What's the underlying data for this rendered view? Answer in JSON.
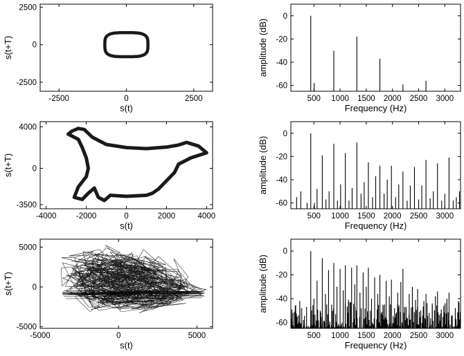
{
  "chart_data": [
    {
      "id": "p1",
      "type": "line",
      "subtype": "phase-portrait",
      "xlabel": "s(t)",
      "ylabel": "s(t+T)",
      "xlim": [
        -3200,
        3200
      ],
      "ylim": [
        -3100,
        2700
      ],
      "xticks": [
        -2500,
        0,
        2500
      ],
      "yticks": [
        -2500,
        0,
        2500
      ],
      "shape": "rounded-square",
      "cx": 0,
      "cy": 0,
      "rx": 800,
      "ry": 800,
      "line_weight": "thick"
    },
    {
      "id": "p2",
      "type": "bar",
      "subtype": "spectrum",
      "xlabel": "Frequency (Hz)",
      "ylabel": "amplitude (dB)",
      "xlim": [
        60,
        3300
      ],
      "ylim": [
        -65,
        10
      ],
      "xticks": [
        500,
        1000,
        1500,
        2000,
        2500,
        3000
      ],
      "yticks": [
        0,
        -20,
        -40,
        -60
      ],
      "baseline": -65,
      "peaks": [
        {
          "x": 440,
          "y": 0
        },
        {
          "x": 505,
          "y": -58
        },
        {
          "x": 880,
          "y": -30
        },
        {
          "x": 1320,
          "y": -18
        },
        {
          "x": 1760,
          "y": -37
        },
        {
          "x": 2200,
          "y": -59
        },
        {
          "x": 2640,
          "y": -56
        }
      ]
    },
    {
      "id": "p3",
      "type": "line",
      "subtype": "phase-portrait",
      "xlabel": "s(t)",
      "ylabel": "s(t+T)",
      "xlim": [
        -4300,
        4300
      ],
      "ylim": [
        -3900,
        4500
      ],
      "xticks": [
        -4000,
        -2000,
        0,
        2000,
        4000
      ],
      "yticks": [
        4000,
        0,
        -3500
      ],
      "line_weight": "thick",
      "outline": [
        [
          -2700,
          3600
        ],
        [
          -2400,
          3850
        ],
        [
          -2100,
          3750
        ],
        [
          -1700,
          3000
        ],
        [
          -1000,
          2300
        ],
        [
          0,
          2000
        ],
        [
          1000,
          1900
        ],
        [
          2000,
          2050
        ],
        [
          2600,
          2250
        ],
        [
          3000,
          2500
        ],
        [
          3600,
          2150
        ],
        [
          4000,
          1500
        ],
        [
          3200,
          1000
        ],
        [
          2600,
          400
        ],
        [
          2400,
          -400
        ],
        [
          2000,
          -1200
        ],
        [
          1600,
          -2000
        ],
        [
          1300,
          -2400
        ],
        [
          1000,
          -2600
        ],
        [
          0,
          -2700
        ],
        [
          -800,
          -2600
        ],
        [
          -1100,
          -3100
        ],
        [
          -1400,
          -2800
        ],
        [
          -1600,
          -1900
        ],
        [
          -1900,
          -2400
        ],
        [
          -2200,
          -3000
        ],
        [
          -2600,
          -2800
        ],
        [
          -2400,
          -1800
        ],
        [
          -2000,
          -800
        ],
        [
          -1900,
          0
        ],
        [
          -2000,
          1000
        ],
        [
          -2200,
          2000
        ],
        [
          -2400,
          2800
        ],
        [
          -2900,
          3300
        ],
        [
          -2700,
          3600
        ]
      ]
    },
    {
      "id": "p4",
      "type": "bar",
      "subtype": "spectrum",
      "xlabel": "Frequency (Hz)",
      "ylabel": "amplitude (dB)",
      "xlim": [
        60,
        3300
      ],
      "ylim": [
        -65,
        10
      ],
      "xticks": [
        500,
        1000,
        1500,
        2000,
        2500,
        3000
      ],
      "yticks": [
        0,
        -20,
        -40,
        -60
      ],
      "baseline": -65,
      "peaks": [
        {
          "x": 170,
          "y": -55
        },
        {
          "x": 250,
          "y": -50
        },
        {
          "x": 370,
          "y": -60
        },
        {
          "x": 440,
          "y": 0
        },
        {
          "x": 510,
          "y": -60
        },
        {
          "x": 560,
          "y": -48
        },
        {
          "x": 660,
          "y": -19
        },
        {
          "x": 730,
          "y": -57
        },
        {
          "x": 790,
          "y": -50
        },
        {
          "x": 880,
          "y": -9
        },
        {
          "x": 950,
          "y": -58
        },
        {
          "x": 1010,
          "y": -44
        },
        {
          "x": 1100,
          "y": -17
        },
        {
          "x": 1170,
          "y": -58
        },
        {
          "x": 1230,
          "y": -47
        },
        {
          "x": 1320,
          "y": -8
        },
        {
          "x": 1400,
          "y": -52
        },
        {
          "x": 1460,
          "y": -42
        },
        {
          "x": 1540,
          "y": -25
        },
        {
          "x": 1620,
          "y": -55
        },
        {
          "x": 1680,
          "y": -37
        },
        {
          "x": 1760,
          "y": -28
        },
        {
          "x": 1840,
          "y": -52
        },
        {
          "x": 1900,
          "y": -40
        },
        {
          "x": 1980,
          "y": -28
        },
        {
          "x": 2060,
          "y": -55
        },
        {
          "x": 2120,
          "y": -44
        },
        {
          "x": 2200,
          "y": -33
        },
        {
          "x": 2280,
          "y": -58
        },
        {
          "x": 2340,
          "y": -45
        },
        {
          "x": 2420,
          "y": -29
        },
        {
          "x": 2500,
          "y": -57
        },
        {
          "x": 2560,
          "y": -45
        },
        {
          "x": 2640,
          "y": -23
        },
        {
          "x": 2720,
          "y": -56
        },
        {
          "x": 2780,
          "y": -50
        },
        {
          "x": 2860,
          "y": -26
        },
        {
          "x": 2940,
          "y": -58
        },
        {
          "x": 3000,
          "y": -52
        },
        {
          "x": 3080,
          "y": -21
        },
        {
          "x": 3160,
          "y": -58
        },
        {
          "x": 3220,
          "y": -55
        },
        {
          "x": 3280,
          "y": -50
        }
      ]
    },
    {
      "id": "p5",
      "type": "line",
      "subtype": "phase-portrait",
      "xlabel": "s(t)",
      "ylabel": "s(t+T)",
      "xlim": [
        -5000,
        6000
      ],
      "ylim": [
        -5200,
        6000
      ],
      "xticks": [
        -5000,
        0,
        5000
      ],
      "yticks": [
        5000,
        0,
        -5000
      ],
      "line_weight": "thin",
      "pattern": "chaotic",
      "anchors": [
        [
          -3500,
          4200
        ],
        [
          -1500,
          5100
        ],
        [
          500,
          5200
        ],
        [
          2500,
          4200
        ],
        [
          4500,
          1500
        ],
        [
          5400,
          -600
        ],
        [
          4500,
          -1700
        ],
        [
          2500,
          -2600
        ],
        [
          500,
          -3300
        ],
        [
          -1500,
          -2800
        ],
        [
          -3300,
          -800
        ],
        [
          -3600,
          1500
        ],
        [
          -2500,
          3500
        ],
        [
          -800,
          4500
        ],
        [
          1500,
          3800
        ],
        [
          3500,
          1800
        ],
        [
          5000,
          -1100
        ],
        [
          3000,
          -2300
        ],
        [
          0,
          -1300
        ],
        [
          -2800,
          -1000
        ],
        [
          -3700,
          -300
        ],
        [
          -2000,
          2000
        ],
        [
          0,
          3000
        ],
        [
          2000,
          2500
        ],
        [
          3800,
          500
        ],
        [
          5200,
          -1000
        ],
        [
          2000,
          -3200
        ],
        [
          -1000,
          -4000
        ],
        [
          -2500,
          -2200
        ],
        [
          -3200,
          2800
        ]
      ]
    },
    {
      "id": "p6",
      "type": "bar",
      "subtype": "spectrum",
      "xlabel": "Frequency (Hz)",
      "ylabel": "amplitude (dB)",
      "xlim": [
        60,
        3300
      ],
      "ylim": [
        -65,
        10
      ],
      "xticks": [
        500,
        1000,
        1500,
        2000,
        2500,
        3000
      ],
      "yticks": [
        0,
        -20,
        -40,
        -60
      ],
      "baseline": -65,
      "pattern": "dense-noisy",
      "peaks": [
        {
          "x": 100,
          "y": -52
        },
        {
          "x": 170,
          "y": -60
        },
        {
          "x": 230,
          "y": -42
        },
        {
          "x": 300,
          "y": -58
        },
        {
          "x": 360,
          "y": -47
        },
        {
          "x": 440,
          "y": 0
        },
        {
          "x": 500,
          "y": -40
        },
        {
          "x": 560,
          "y": -25
        },
        {
          "x": 620,
          "y": -50
        },
        {
          "x": 660,
          "y": -6
        },
        {
          "x": 720,
          "y": -36
        },
        {
          "x": 780,
          "y": -16
        },
        {
          "x": 840,
          "y": -45
        },
        {
          "x": 880,
          "y": -10
        },
        {
          "x": 940,
          "y": -30
        },
        {
          "x": 1000,
          "y": -15
        },
        {
          "x": 1060,
          "y": -33
        },
        {
          "x": 1100,
          "y": -12
        },
        {
          "x": 1160,
          "y": -41
        },
        {
          "x": 1220,
          "y": -14
        },
        {
          "x": 1280,
          "y": -28
        },
        {
          "x": 1320,
          "y": -12
        },
        {
          "x": 1380,
          "y": -35
        },
        {
          "x": 1440,
          "y": -18
        },
        {
          "x": 1500,
          "y": -30
        },
        {
          "x": 1540,
          "y": -14
        },
        {
          "x": 1600,
          "y": -40
        },
        {
          "x": 1660,
          "y": -22
        },
        {
          "x": 1720,
          "y": -36
        },
        {
          "x": 1760,
          "y": -20
        },
        {
          "x": 1820,
          "y": -45
        },
        {
          "x": 1880,
          "y": -25
        },
        {
          "x": 1940,
          "y": -38
        },
        {
          "x": 1980,
          "y": -24
        },
        {
          "x": 2040,
          "y": -48
        },
        {
          "x": 2100,
          "y": -35
        },
        {
          "x": 2160,
          "y": -26
        },
        {
          "x": 2200,
          "y": -15
        },
        {
          "x": 2260,
          "y": -47
        },
        {
          "x": 2320,
          "y": -36
        },
        {
          "x": 2380,
          "y": -30
        },
        {
          "x": 2440,
          "y": -41
        },
        {
          "x": 2480,
          "y": -32
        },
        {
          "x": 2540,
          "y": -50
        },
        {
          "x": 2600,
          "y": -42
        },
        {
          "x": 2640,
          "y": -36
        },
        {
          "x": 2700,
          "y": -52
        },
        {
          "x": 2760,
          "y": -44
        },
        {
          "x": 2820,
          "y": -38
        },
        {
          "x": 2860,
          "y": -34
        },
        {
          "x": 2920,
          "y": -55
        },
        {
          "x": 2980,
          "y": -46
        },
        {
          "x": 3040,
          "y": -40
        },
        {
          "x": 3080,
          "y": -35
        },
        {
          "x": 3140,
          "y": -54
        },
        {
          "x": 3200,
          "y": -48
        },
        {
          "x": 3260,
          "y": -42
        }
      ]
    }
  ]
}
